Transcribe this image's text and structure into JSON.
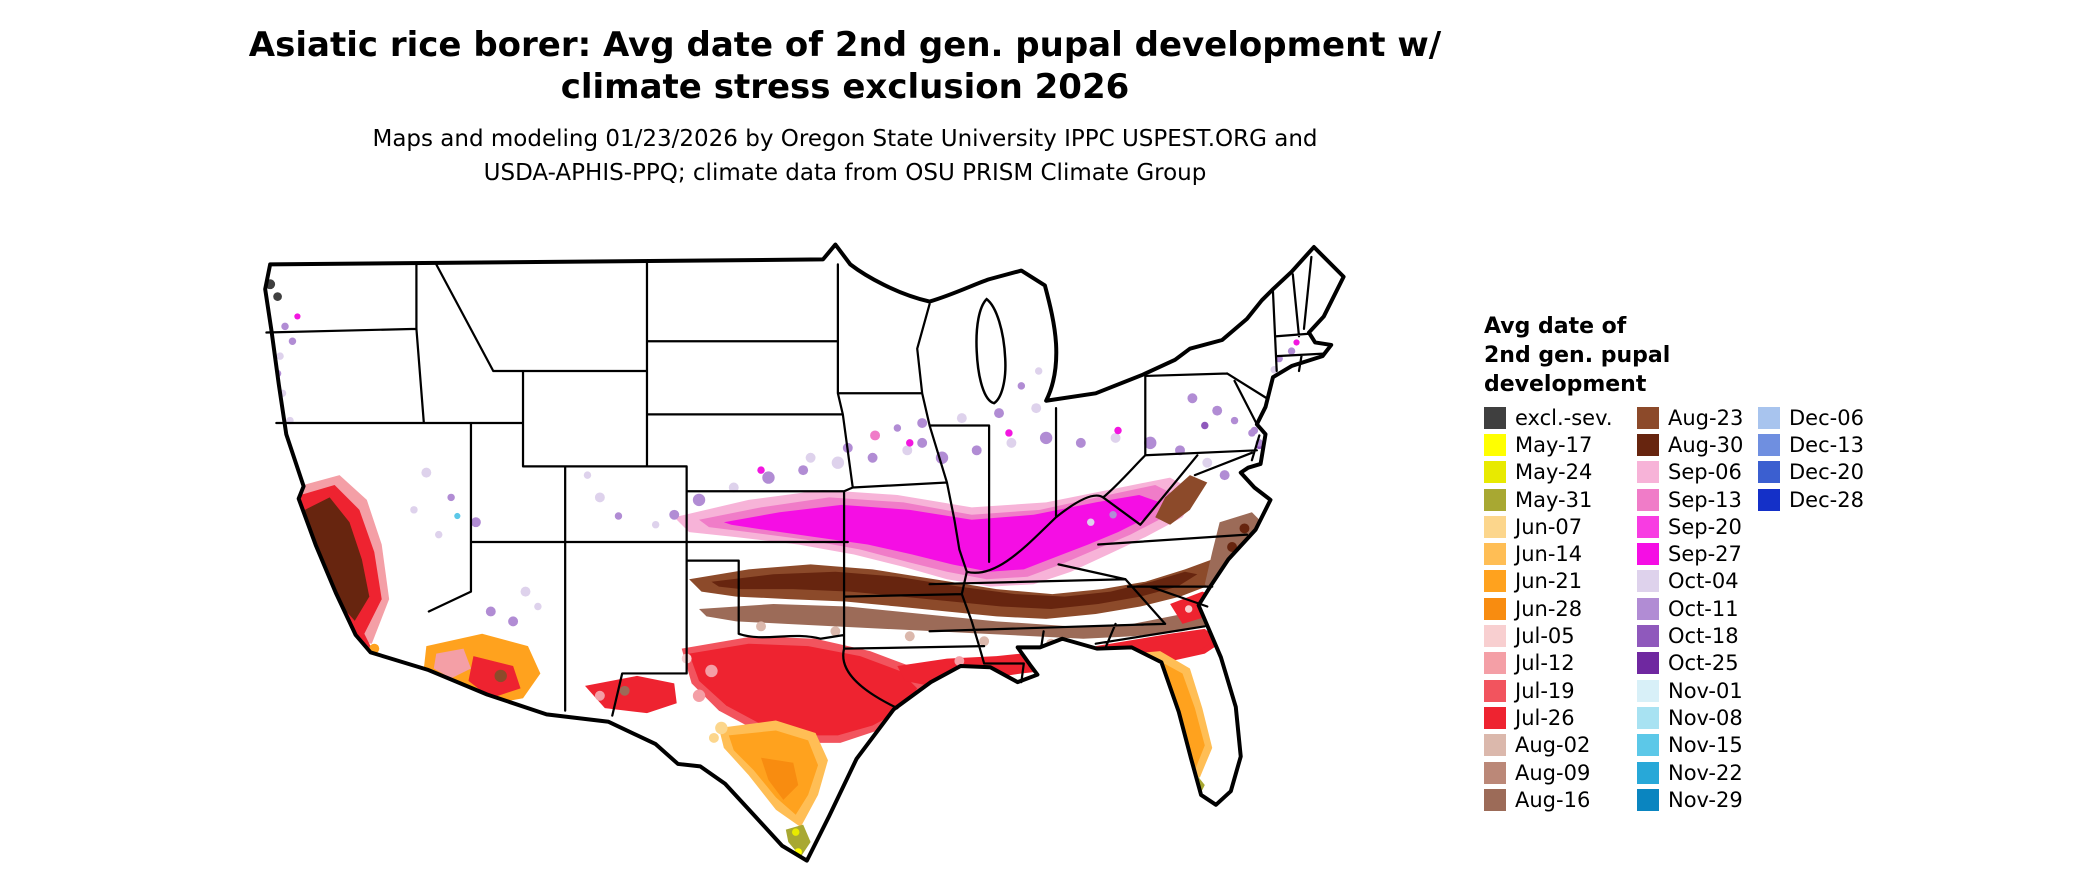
{
  "title_line1": "Asiatic rice borer: Avg date of 2nd gen. pupal development w/",
  "title_line2": "climate stress exclusion 2026",
  "subtitle_line1": "Maps and modeling 01/23/2026 by Oregon State University IPPC USPEST.ORG and",
  "subtitle_line2": "USDA-APHIS-PPQ; climate data from OSU PRISM Climate Group",
  "legend": {
    "title_lines": [
      "Avg date of",
      "2nd gen. pupal",
      "development"
    ],
    "columns": [
      [
        {
          "label": "excl.-sev.",
          "color": "#3f3f3f"
        },
        {
          "label": "May-17",
          "color": "#ffff00"
        },
        {
          "label": "May-24",
          "color": "#e8ea00"
        },
        {
          "label": "May-31",
          "color": "#a8a832"
        },
        {
          "label": "Jun-07",
          "color": "#fcd68c"
        },
        {
          "label": "Jun-14",
          "color": "#ffbe55"
        },
        {
          "label": "Jun-21",
          "color": "#ffa21e"
        },
        {
          "label": "Jun-28",
          "color": "#f88c10"
        },
        {
          "label": "Jul-05",
          "color": "#f8cfd0"
        },
        {
          "label": "Jul-12",
          "color": "#f49fa6"
        },
        {
          "label": "Jul-19",
          "color": "#f2545e"
        },
        {
          "label": "Jul-26",
          "color": "#ee2330"
        },
        {
          "label": "Aug-02",
          "color": "#dbb8ac"
        },
        {
          "label": "Aug-09",
          "color": "#bb8878"
        },
        {
          "label": "Aug-16",
          "color": "#9c6b58"
        }
      ],
      [
        {
          "label": "Aug-23",
          "color": "#8c4a2a"
        },
        {
          "label": "Aug-30",
          "color": "#67250f"
        },
        {
          "label": "Sep-06",
          "color": "#f7b3d8"
        },
        {
          "label": "Sep-13",
          "color": "#f07cc8"
        },
        {
          "label": "Sep-20",
          "color": "#f83ce2"
        },
        {
          "label": "Sep-27",
          "color": "#f50ee4"
        },
        {
          "label": "Oct-04",
          "color": "#ded2ec"
        },
        {
          "label": "Oct-11",
          "color": "#b18cd4"
        },
        {
          "label": "Oct-18",
          "color": "#8f59bc"
        },
        {
          "label": "Oct-25",
          "color": "#6f28a0"
        },
        {
          "label": "Nov-01",
          "color": "#d8f0f8"
        },
        {
          "label": "Nov-08",
          "color": "#a8e2f2"
        },
        {
          "label": "Nov-15",
          "color": "#5cc8e8"
        },
        {
          "label": "Nov-22",
          "color": "#28a8d8"
        },
        {
          "label": "Nov-29",
          "color": "#0a85c0"
        }
      ],
      [
        {
          "label": "Dec-06",
          "color": "#a8c4ee"
        },
        {
          "label": "Dec-13",
          "color": "#6f8fe0"
        },
        {
          "label": "Dec-20",
          "color": "#3b5fd0"
        },
        {
          "label": "Dec-28",
          "color": "#1430c8"
        }
      ]
    ]
  }
}
